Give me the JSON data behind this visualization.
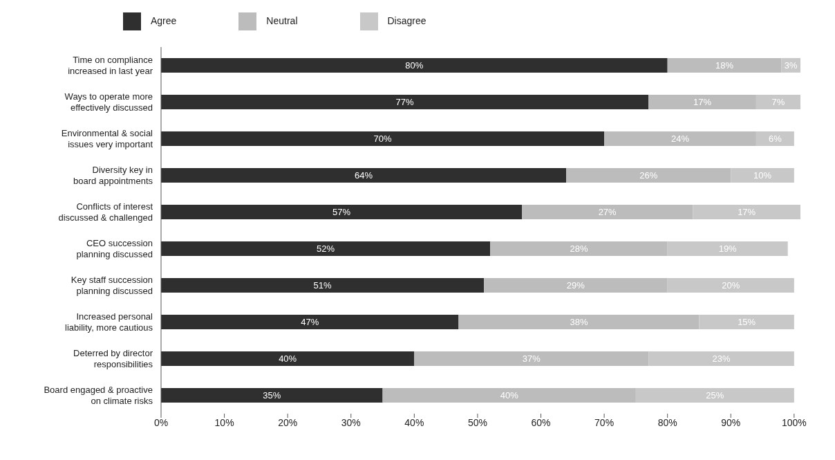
{
  "chart_data": {
    "type": "bar",
    "orientation": "horizontal",
    "stacked": true,
    "legend": "top left",
    "grid": false,
    "categories": [
      "Time on compliance increased in last year",
      "Ways to operate more effectively discussed",
      "Environmental & social issues very important",
      "Diversity key in board appointments",
      "Conflicts of interest discussed & challenged",
      "CEO succession planning discussed",
      "Key staff succession planning discussed",
      "Increased personal liability, more cautious",
      "Deterred by director responsibilities",
      "Board engaged & proactive on climate risks"
    ],
    "series": [
      {
        "name": "Agree",
        "color": "#2f2f2f",
        "values": [
          80,
          77,
          70,
          64,
          57,
          52,
          51,
          47,
          40,
          35
        ],
        "value_labels": [
          "80%",
          "77%",
          "70%",
          "64%",
          "57%",
          "52%",
          "51%",
          "47%",
          "40%",
          "35%"
        ]
      },
      {
        "name": "Neutral",
        "color": "#bcbcbc",
        "values": [
          18,
          17,
          24,
          26,
          27,
          28,
          29,
          38,
          37,
          40
        ],
        "value_labels": [
          "18%",
          "17%",
          "24%",
          "26%",
          "27%",
          "28%",
          "29%",
          "38%",
          "37%",
          "40%"
        ]
      },
      {
        "name": "Disagree",
        "color": "#c8c8c8",
        "values": [
          3,
          7,
          6,
          10,
          17,
          19,
          20,
          15,
          23,
          25
        ],
        "value_labels": [
          "3%",
          "7%",
          "6%",
          "10%",
          "17%",
          "19%",
          "20%",
          "15%",
          "23%",
          "25%"
        ]
      }
    ],
    "xlim": [
      0,
      101
    ],
    "xticks": [
      {
        "value": 0,
        "label": "0%"
      },
      {
        "value": 10,
        "label": "10%"
      },
      {
        "value": 20,
        "label": "20%"
      },
      {
        "value": 30,
        "label": "30%"
      },
      {
        "value": 40,
        "label": "40%"
      },
      {
        "value": 50,
        "label": "50%"
      },
      {
        "value": 60,
        "label": "60%"
      },
      {
        "value": 70,
        "label": "70%"
      },
      {
        "value": 80,
        "label": "80%"
      },
      {
        "value": 90,
        "label": "90%"
      },
      {
        "value": 100,
        "label": "100%"
      }
    ]
  }
}
